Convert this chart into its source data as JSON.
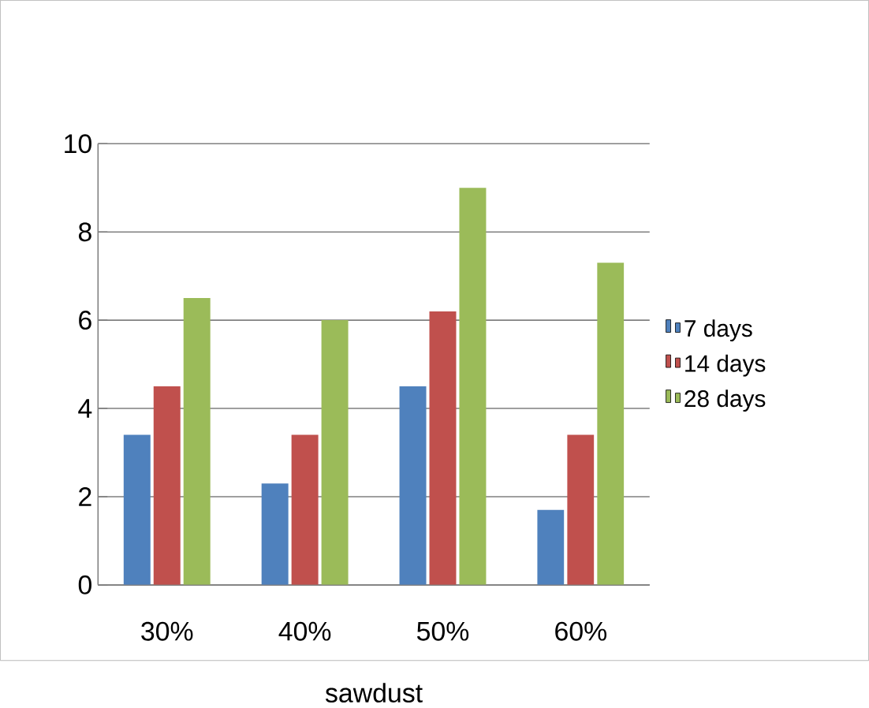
{
  "chart_data": {
    "type": "bar",
    "xlabel": "sawdust",
    "categories": [
      "30%",
      "40%",
      "50%",
      "60%"
    ],
    "series": [
      {
        "name": "7 days",
        "color": "#4f81bd",
        "values": [
          3.4,
          2.3,
          4.5,
          1.7
        ]
      },
      {
        "name": "14 days",
        "color": "#c0504d",
        "values": [
          4.5,
          3.4,
          6.2,
          3.4
        ]
      },
      {
        "name": "28 days",
        "color": "#9bbb59",
        "values": [
          6.5,
          6.0,
          9.0,
          7.3
        ]
      }
    ],
    "ylim": [
      0,
      10
    ],
    "yticks": [
      0,
      2,
      4,
      6,
      8,
      10
    ],
    "grid": "y",
    "legend": "right"
  }
}
